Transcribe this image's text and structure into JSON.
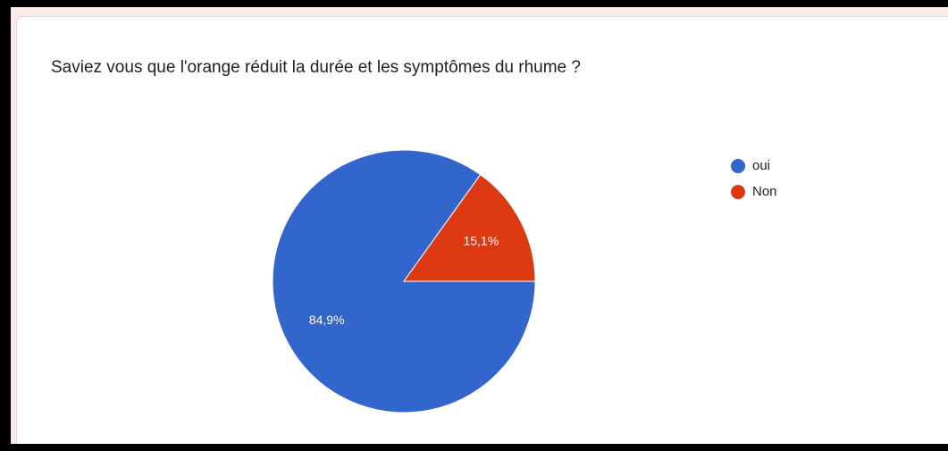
{
  "chart_data": {
    "type": "pie",
    "title": "Saviez vous que l'orange réduit la durée et les symptômes du rhume ?",
    "categories": [
      "oui",
      "Non"
    ],
    "values": [
      84.9,
      15.1
    ],
    "value_labels": [
      "84,9%",
      "15,1%"
    ],
    "colors": [
      "#3366cc",
      "#dc3912"
    ],
    "legend": "right"
  }
}
